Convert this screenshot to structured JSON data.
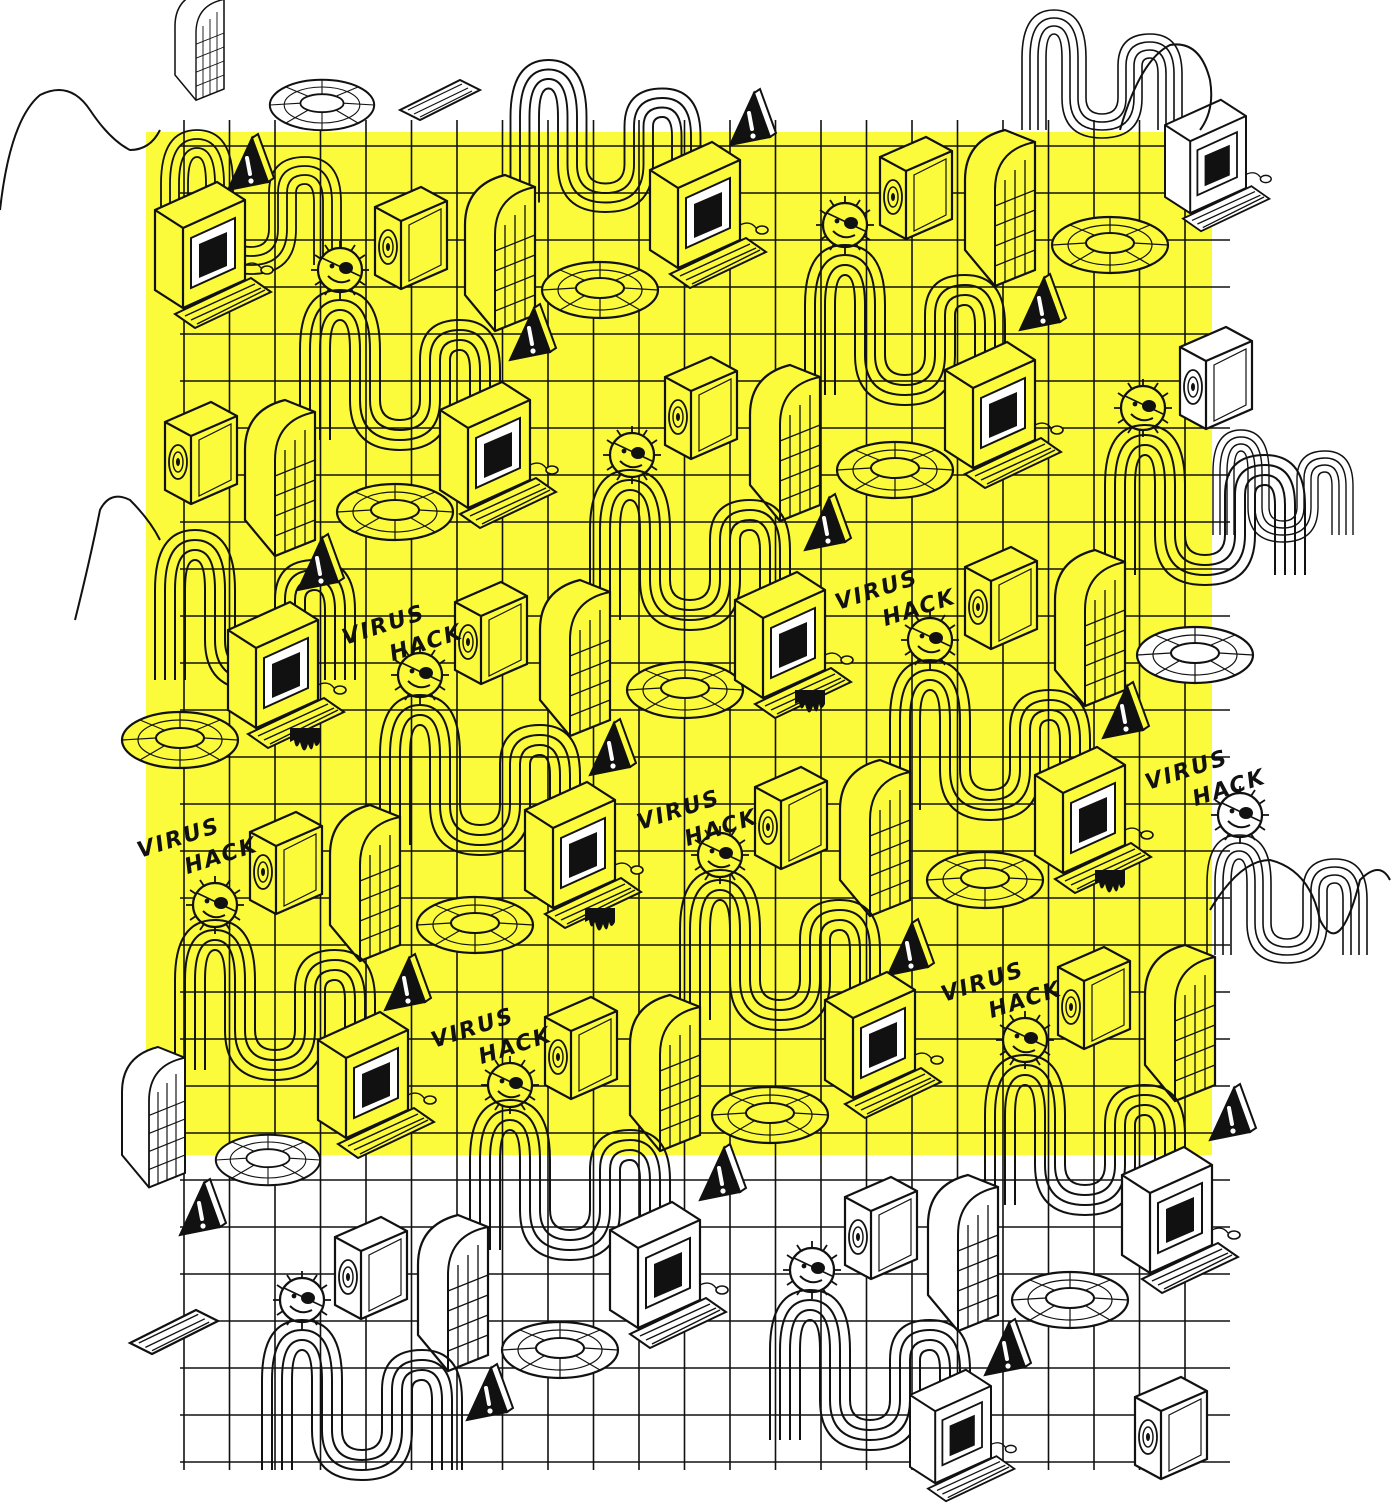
{
  "colors": {
    "highlight": "#fbfb3c",
    "ink": "#111111",
    "paper": "#ffffff"
  },
  "labels": {
    "line1": "VIRUS",
    "line2": "HACK"
  },
  "icons": [
    "computer-icon",
    "speaker-icon",
    "arch-grid-icon",
    "torus-icon",
    "warning-triangle-icon",
    "pirate-smiley-icon",
    "keyboard-icon",
    "ribbon-wave-icon"
  ]
}
